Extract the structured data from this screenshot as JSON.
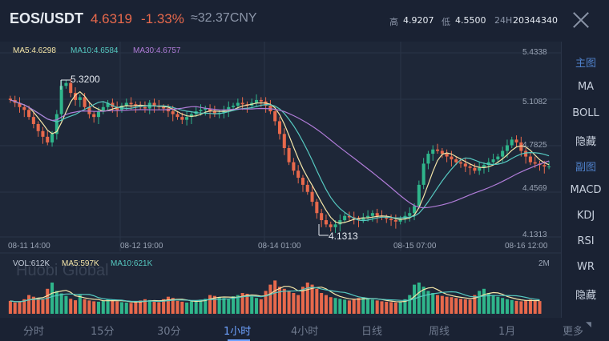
{
  "header": {
    "pair": "EOS/USDT",
    "price": "4.6319",
    "change": "-1.33%",
    "cny": "≈32.37CNY",
    "high_label": "高",
    "high_value": "4.9207",
    "low_label": "低",
    "low_value": "4.5500",
    "vol_label": "24H",
    "vol_value": "20344340"
  },
  "legend": {
    "ma5": "MA5:4.6298",
    "ma10": "MA10:4.6584",
    "ma30": "MA30:4.6757",
    "vol": "VOL:612K",
    "vma5": "MA5:597K",
    "vma10": "MA10:621K",
    "vol_max": "2M"
  },
  "colors": {
    "up": "#2fb58b",
    "down": "#e8694c",
    "ma5": "#f5e6a8",
    "ma10": "#56c9c1",
    "ma30": "#b07cd8",
    "accent": "#6ea2ff"
  },
  "watermark": "Huobi Global",
  "annotations": {
    "high": "5.3200",
    "low": "4.1313"
  },
  "side_panel": {
    "main_title": "主图",
    "main_items": [
      "MA",
      "BOLL",
      "隐藏"
    ],
    "sub_title": "副图",
    "sub_items": [
      "MACD",
      "KDJ",
      "RSI",
      "WR",
      "隐藏"
    ]
  },
  "tabs": [
    "分时",
    "15分",
    "30分",
    "1小时",
    "4小时",
    "日线",
    "周线",
    "1月",
    "更多"
  ],
  "active_tab": "1小时",
  "chart_data": {
    "type": "candlestick",
    "x_tick_labels": [
      "08-11 14:00",
      "08-12 19:00",
      "08-14 01:00",
      "08-15 07:00",
      "08-16 12:00"
    ],
    "y_tick_labels": [
      "5.4338",
      "5.1082",
      "4.7825",
      "4.4569",
      "4.1313"
    ],
    "ylim": [
      4.1313,
      5.4338
    ],
    "close": [
      5.1,
      5.08,
      5.05,
      5.03,
      4.98,
      4.93,
      4.88,
      4.84,
      4.8,
      4.86,
      5.0,
      5.2,
      5.22,
      5.15,
      5.1,
      5.12,
      5.05,
      5.0,
      4.98,
      5.02,
      5.05,
      5.08,
      5.05,
      5.03,
      5.06,
      5.08,
      5.07,
      5.06,
      5.05,
      5.04,
      5.08,
      5.06,
      5.05,
      5.04,
      5.02,
      5.0,
      4.98,
      4.96,
      4.98,
      5.0,
      5.02,
      5.03,
      5.04,
      5.02,
      5.0,
      5.01,
      5.03,
      5.05,
      5.06,
      5.08,
      5.07,
      5.06,
      5.08,
      5.1,
      5.09,
      5.06,
      5.02,
      4.95,
      4.86,
      4.76,
      4.66,
      4.6,
      4.55,
      4.5,
      4.45,
      4.38,
      4.3,
      4.25,
      4.22,
      4.2,
      4.22,
      4.25,
      4.28,
      4.27,
      4.26,
      4.25,
      4.27,
      4.28,
      4.3,
      4.28,
      4.27,
      4.26,
      4.25,
      4.24,
      4.26,
      4.28,
      4.3,
      4.35,
      4.5,
      4.65,
      4.72,
      4.75,
      4.74,
      4.72,
      4.7,
      4.68,
      4.66,
      4.65,
      4.63,
      4.62,
      4.6,
      4.62,
      4.64,
      4.66,
      4.68,
      4.7,
      4.74,
      4.78,
      4.82,
      4.8,
      4.74,
      4.7,
      4.66,
      4.65,
      4.64,
      4.63,
      4.63
    ],
    "volume_k": [
      620,
      540,
      580,
      700,
      900,
      820,
      760,
      680,
      1200,
      1500,
      1100,
      980,
      860,
      720,
      650,
      900,
      700,
      640,
      600,
      580,
      620,
      700,
      650,
      600,
      560,
      540,
      520,
      600,
      640,
      700,
      660,
      580,
      560,
      700,
      820,
      760,
      620,
      580,
      540,
      600,
      640,
      680,
      720,
      900,
      860,
      800,
      760,
      700,
      840,
      900,
      1000,
      960,
      820,
      760,
      700,
      1100,
      1400,
      1600,
      1300,
      1200,
      1100,
      1000,
      900,
      1300,
      1500,
      1400,
      1200,
      1000,
      900,
      800,
      760,
      720,
      680,
      640,
      700,
      760,
      800,
      720,
      680,
      640,
      600,
      580,
      560,
      540,
      600,
      700,
      900,
      1400,
      1500,
      1300,
      1100,
      1000,
      900,
      860,
      820,
      800,
      760,
      720,
      700,
      680,
      900,
      1100,
      1200,
      1000,
      900,
      820,
      760,
      700,
      660,
      620,
      600,
      640,
      680,
      640,
      612
    ]
  }
}
